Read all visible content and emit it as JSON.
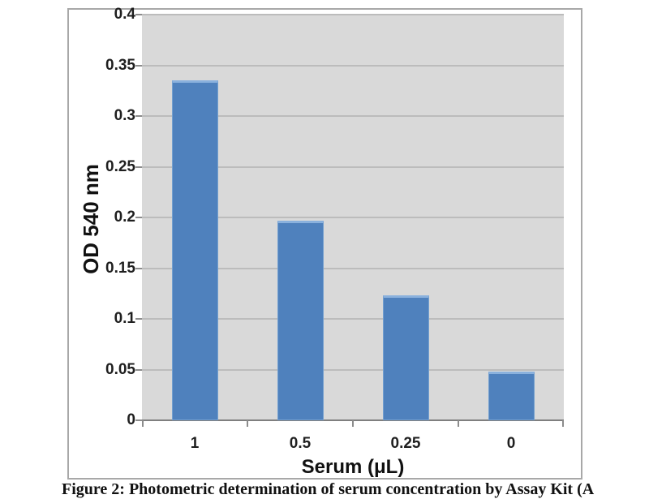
{
  "chart_data": {
    "type": "bar",
    "title": "",
    "xlabel": "Serum (μL)",
    "ylabel": "OD 540 nm",
    "categories": [
      "1",
      "0.5",
      "0.25",
      "0"
    ],
    "values": [
      0.335,
      0.197,
      0.123,
      0.048
    ],
    "ylim": [
      0,
      0.4
    ],
    "ytick_labels": [
      "0",
      "0.05",
      "0.1",
      "0.15",
      "0.2",
      "0.25",
      "0.3",
      "0.35",
      "0.4"
    ],
    "grid": true,
    "legend": "none",
    "colors": {
      "bar": "#4f81bd",
      "bar_highlight": "#8ab1dd",
      "plot_background": "#d9d9d9",
      "gridline": "#bcbcbc",
      "axis": "#7f7f7f",
      "frame_border": "#a8a8a8",
      "text": "#1f1f1f"
    }
  },
  "figure": {
    "caption_clipped": "Figure 2: Photometric determination of serum concentration by Assay Kit (A",
    "caption_truncated": true
  }
}
